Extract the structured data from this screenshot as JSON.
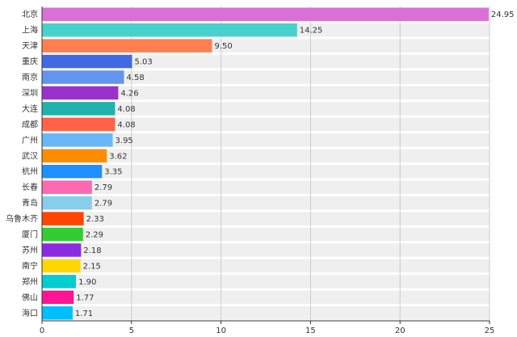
{
  "chart_data": {
    "type": "bar",
    "orientation": "horizontal",
    "categories": [
      "北京",
      "上海",
      "天津",
      "重庆",
      "南京",
      "深圳",
      "大连",
      "成都",
      "广州",
      "武汉",
      "杭州",
      "长春",
      "青岛",
      "乌鲁木齐",
      "厦门",
      "苏州",
      "南宁",
      "郑州",
      "佛山",
      "海口"
    ],
    "values": [
      24.95,
      14.25,
      9.5,
      5.03,
      4.58,
      4.26,
      4.08,
      4.08,
      3.95,
      3.62,
      3.35,
      2.79,
      2.79,
      2.33,
      2.29,
      2.18,
      2.15,
      1.9,
      1.77,
      1.71
    ],
    "value_labels": [
      "24.95",
      "14.25",
      "9.50",
      "5.03",
      "4.58",
      "4.26",
      "4.08",
      "4.08",
      "3.95",
      "3.62",
      "3.35",
      "2.79",
      "2.79",
      "2.33",
      "2.29",
      "2.18",
      "2.15",
      "1.90",
      "1.77",
      "1.71"
    ],
    "colors": [
      "#da70d6",
      "#48d1cc",
      "#ff7f50",
      "#4169e1",
      "#6495ed",
      "#9932cc",
      "#20b2aa",
      "#ff6347",
      "#6ab7f7",
      "#ff8c00",
      "#1e90ff",
      "#ff69b4",
      "#87ceeb",
      "#ff4500",
      "#32cd32",
      "#8a2be2",
      "#ffd700",
      "#00ced1",
      "#ff1493",
      "#00bfff"
    ],
    "xlim": [
      0,
      25
    ],
    "xticks": [
      "0",
      "5",
      "10",
      "15",
      "20",
      "25"
    ],
    "title": "",
    "xlabel": "",
    "ylabel": "",
    "grid": true,
    "band_color": "#efefef"
  }
}
